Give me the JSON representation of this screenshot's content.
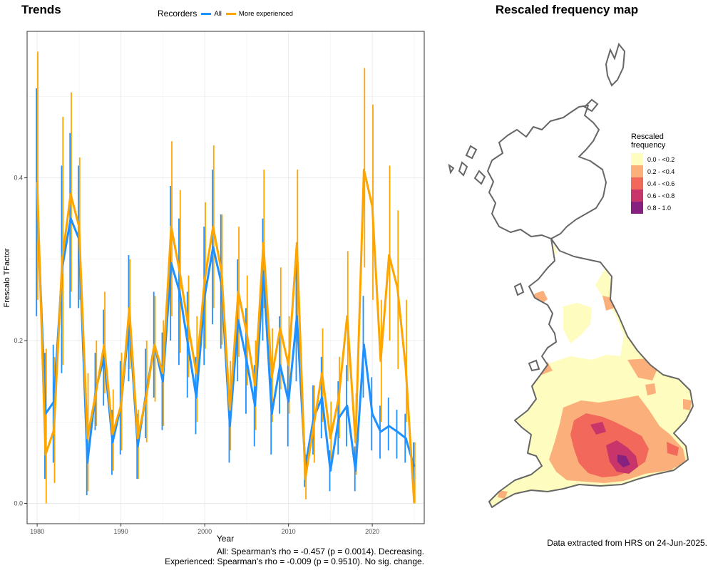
{
  "trends_title": "Trends",
  "map_title": "Rescaled frequency map",
  "legend": {
    "title": "Recorders",
    "items": [
      {
        "label": "All",
        "color": "#1e90ff"
      },
      {
        "label": "More experienced",
        "color": "#ffa500"
      }
    ]
  },
  "stats": {
    "all": "All: Spearman's rho = -0.457 (p = 0.0014). Decreasing.",
    "experienced": "Experienced: Spearman's rho = -0.009 (p = 0.9510). No sig. change."
  },
  "extract_note": "Data extracted from HRS on 24-Jun-2025.",
  "map_legend": {
    "title_line1": "Rescaled",
    "title_line2": "frequency",
    "classes": [
      {
        "label": "0.0 - <0.2",
        "color": "#fefcbe"
      },
      {
        "label": "0.2 - <0.4",
        "color": "#fbb07c"
      },
      {
        "label": "0.4 - <0.6",
        "color": "#f2685a"
      },
      {
        "label": "0.6 - <0.8",
        "color": "#c8356b"
      },
      {
        "label": "0.8 - 1.0",
        "color": "#862180"
      }
    ]
  },
  "chart_data": {
    "type": "line",
    "title": "Trends",
    "xlabel": "Year",
    "ylabel": "Frescalo TFactor",
    "xlim": [
      1978.8,
      2026.2
    ],
    "ylim": [
      -0.025,
      0.58
    ],
    "xticks": [
      1980,
      1990,
      2000,
      2010,
      2020
    ],
    "yticks": [
      0.0,
      0.2,
      0.4
    ],
    "ytick_labels": [
      "0.0",
      "0.2",
      "0.4"
    ],
    "grid": true,
    "legend_position": "top",
    "x": [
      1980,
      1981,
      1982,
      1983,
      1984,
      1985,
      1986,
      1987,
      1988,
      1989,
      1990,
      1991,
      1992,
      1993,
      1994,
      1995,
      1996,
      1997,
      1998,
      1999,
      2000,
      2001,
      2002,
      2003,
      2004,
      2005,
      2006,
      2007,
      2008,
      2009,
      2010,
      2011,
      2012,
      2013,
      2014,
      2015,
      2016,
      2017,
      2018,
      2019,
      2020,
      2021,
      2022,
      2023,
      2024,
      2025
    ],
    "series": [
      {
        "name": "All",
        "color": "#1e90ff",
        "values": [
          0.37,
          0.11,
          0.125,
          0.29,
          0.35,
          0.325,
          0.05,
          0.14,
          0.18,
          0.075,
          0.12,
          0.225,
          0.07,
          0.135,
          0.195,
          0.15,
          0.295,
          0.26,
          0.195,
          0.13,
          0.255,
          0.315,
          0.27,
          0.095,
          0.225,
          0.175,
          0.12,
          0.285,
          0.11,
          0.17,
          0.125,
          0.23,
          0.045,
          0.105,
          0.13,
          0.04,
          0.105,
          0.12,
          0.04,
          0.195,
          0.11,
          0.088,
          0.095,
          0.088,
          0.08,
          0.045
        ],
        "lower": [
          0.23,
          0.03,
          0.05,
          0.16,
          0.24,
          0.24,
          0.01,
          0.09,
          0.12,
          0.035,
          0.06,
          0.15,
          0.03,
          0.08,
          0.13,
          0.09,
          0.2,
          0.17,
          0.13,
          0.085,
          0.17,
          0.22,
          0.19,
          0.05,
          0.15,
          0.11,
          0.07,
          0.2,
          0.06,
          0.11,
          0.07,
          0.15,
          0.02,
          0.06,
          0.08,
          0.015,
          0.06,
          0.07,
          0.015,
          0.13,
          0.065,
          0.055,
          0.065,
          0.055,
          0.05,
          0.012
        ],
        "upper": [
          0.51,
          0.185,
          0.195,
          0.415,
          0.455,
          0.415,
          0.09,
          0.185,
          0.238,
          0.115,
          0.175,
          0.305,
          0.11,
          0.19,
          0.26,
          0.21,
          0.39,
          0.35,
          0.26,
          0.18,
          0.34,
          0.41,
          0.355,
          0.14,
          0.3,
          0.24,
          0.17,
          0.35,
          0.16,
          0.23,
          0.18,
          0.31,
          0.075,
          0.145,
          0.18,
          0.065,
          0.15,
          0.17,
          0.07,
          0.255,
          0.155,
          0.12,
          0.13,
          0.115,
          0.11,
          0.075
        ]
      },
      {
        "name": "More experienced",
        "color": "#ffa500",
        "values": [
          0.395,
          0.06,
          0.09,
          0.3,
          0.38,
          0.34,
          0.08,
          0.135,
          0.195,
          0.085,
          0.12,
          0.24,
          0.08,
          0.13,
          0.195,
          0.16,
          0.34,
          0.285,
          0.22,
          0.16,
          0.275,
          0.34,
          0.285,
          0.115,
          0.26,
          0.21,
          0.145,
          0.32,
          0.155,
          0.215,
          0.17,
          0.32,
          0.03,
          0.095,
          0.16,
          0.08,
          0.13,
          0.23,
          0.075,
          0.41,
          0.365,
          0.175,
          0.305,
          0.265,
          0.165,
          0.0
        ],
        "lower": [
          0.25,
          0.0,
          0.025,
          0.17,
          0.26,
          0.25,
          0.015,
          0.095,
          0.135,
          0.04,
          0.065,
          0.165,
          0.03,
          0.075,
          0.125,
          0.095,
          0.23,
          0.185,
          0.155,
          0.1,
          0.19,
          0.24,
          0.195,
          0.065,
          0.18,
          0.145,
          0.09,
          0.24,
          0.1,
          0.14,
          0.11,
          0.22,
          0.005,
          0.05,
          0.1,
          0.04,
          0.08,
          0.15,
          0.035,
          0.29,
          0.25,
          0.1,
          0.2,
          0.165,
          0.1,
          0.0
        ],
        "upper": [
          0.555,
          0.19,
          0.18,
          0.475,
          0.505,
          0.425,
          0.16,
          0.2,
          0.26,
          0.14,
          0.185,
          0.3,
          0.115,
          0.2,
          0.255,
          0.225,
          0.445,
          0.385,
          0.28,
          0.23,
          0.37,
          0.44,
          0.355,
          0.175,
          0.34,
          0.28,
          0.2,
          0.41,
          0.215,
          0.29,
          0.23,
          0.41,
          0.06,
          0.145,
          0.215,
          0.125,
          0.18,
          0.31,
          0.135,
          0.535,
          0.49,
          0.25,
          0.415,
          0.36,
          0.25,
          0.075
        ]
      }
    ]
  },
  "map_data": {
    "type": "choropleth",
    "title": "Rescaled frequency map",
    "region": "Great Britain"
  }
}
